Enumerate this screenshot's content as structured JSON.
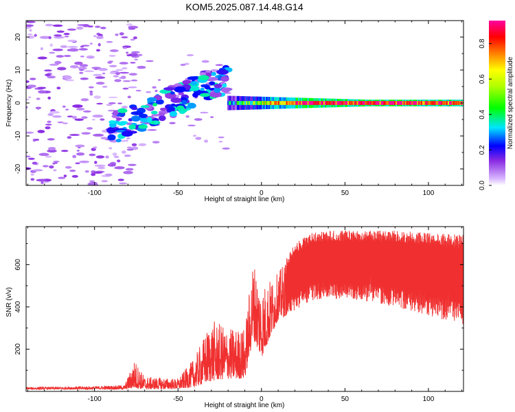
{
  "title": "KOM5.2025.087.14.48.G14",
  "colors": {
    "snr_line": "#f03030",
    "spectrogram_low": "#cc99ff",
    "spectrogram_mid": "#4444ff",
    "axis": "#000000"
  },
  "chart_data": [
    {
      "type": "heatmap",
      "name": "spectrogram",
      "xlabel": "Height of straight line (km)",
      "ylabel": "Frequency (Hz)",
      "xlim": [
        -141,
        121
      ],
      "ylim": [
        -25,
        25
      ],
      "xticks": [
        -100,
        -50,
        0,
        50,
        100
      ],
      "yticks": [
        -20,
        -10,
        0,
        10,
        20
      ],
      "colorbar": {
        "label": "Normalized spectral amplitude",
        "range": [
          0,
          0.93
        ],
        "ticks": [
          0.0,
          0.2,
          0.4,
          0.6,
          0.8
        ],
        "colormap": "rainbow (lavender-purple-blue-cyan-green-yellow-orange-red-magenta)"
      },
      "features": [
        {
          "description": "scattered low-amplitude noise patches",
          "x_range": [
            -141,
            -90
          ],
          "freq_range": [
            -25,
            25
          ],
          "amplitude": 0.05
        },
        {
          "description": "rising frequency band",
          "x_start": -90,
          "x_end": -20,
          "freq_start": -8,
          "freq_end": 8,
          "amplitude": 0.3
        },
        {
          "description": "steady narrow band at 0 Hz",
          "x_range": [
            -20,
            121
          ],
          "freq": 0,
          "amplitude": 0.9
        }
      ]
    },
    {
      "type": "line",
      "name": "snr",
      "xlabel": "Height of straight line (km)",
      "ylabel": "SNR (v/v)",
      "xlim": [
        -141,
        121
      ],
      "ylim": [
        0,
        780
      ],
      "xticks": [
        -100,
        -50,
        0,
        50,
        100
      ],
      "yticks": [
        200,
        400,
        600
      ],
      "envelope": {
        "x": [
          -141,
          -100,
          -82,
          -76,
          -70,
          -50,
          -40,
          -30,
          -20,
          -10,
          -5,
          0,
          10,
          20,
          30,
          40,
          60,
          80,
          100,
          121
        ],
        "lower": [
          10,
          10,
          10,
          15,
          10,
          12,
          20,
          50,
          60,
          60,
          250,
          160,
          340,
          380,
          430,
          440,
          430,
          400,
          360,
          310
        ],
        "upper": [
          20,
          25,
          30,
          150,
          70,
          60,
          160,
          340,
          300,
          300,
          630,
          500,
          560,
          700,
          750,
          760,
          760,
          760,
          750,
          740
        ]
      }
    }
  ]
}
